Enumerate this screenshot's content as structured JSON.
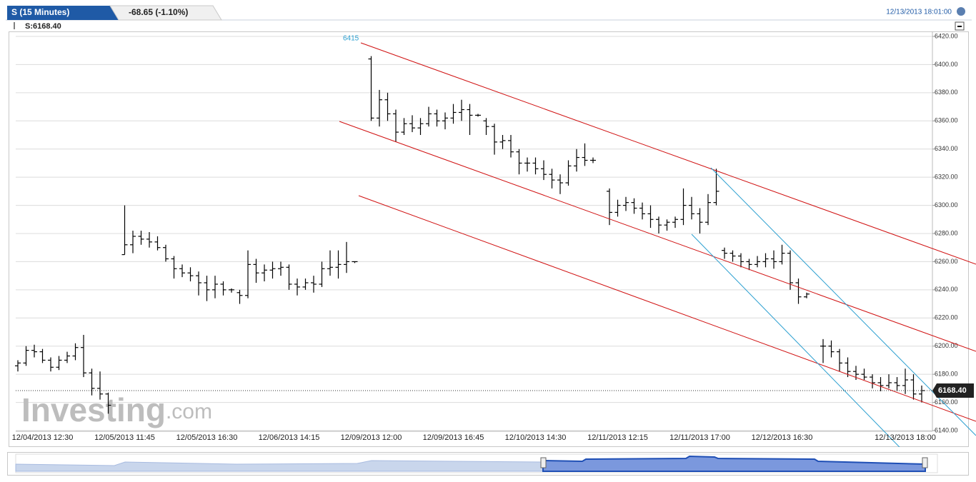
{
  "chart_data": {
    "type": "ohlc",
    "title": "S (15 Minutes)",
    "change": "-68.65 (-1.10%)",
    "timestamp": "12/13/2013 18:01:00",
    "legend_text": "S:6168.40",
    "annotation": "6415",
    "watermark": "Investing",
    "watermark_suffix": ".com",
    "last_price": {
      "value": 6168.4,
      "label": "6168.40"
    },
    "grid": true,
    "series": [
      {
        "name": "S",
        "color": "#000000",
        "open": [
          6186,
          6188,
          6197,
          6196,
          6190,
          6185,
          6190,
          6193,
          6199,
          6181,
          6170,
          6166,
          null,
          6265,
          6272,
          6278,
          6276,
          6274,
          6270,
          6262,
          6255,
          6252,
          6250,
          6245,
          6240,
          6244,
          6240,
          6238,
          6236,
          6258,
          6252,
          6254,
          6255,
          6256,
          6244,
          6242,
          6245,
          6244,
          6255,
          6256,
          6258,
          6260,
          null,
          6404,
          6362,
          6375,
          6365,
          6352,
          6358,
          6355,
          6358,
          6365,
          6360,
          6362,
          6366,
          6368,
          6364,
          6360,
          6356,
          6345,
          6346,
          6338,
          6330,
          6330,
          6326,
          6322,
          6318,
          6316,
          6328,
          6334,
          6332,
          null,
          6310,
          6295,
          6300,
          6302,
          6298,
          6294,
          6290,
          6286,
          6288,
          6290,
          6300,
          6294,
          6288,
          6302,
          6268,
          6266,
          6264,
          6260,
          6258,
          6260,
          6262,
          6260,
          6266,
          6245,
          6235,
          null,
          6200,
          6200,
          6196,
          6188,
          6182,
          6180,
          6178,
          6174,
          6172,
          6174,
          6172,
          6176,
          6166
        ],
        "high": [
          6190,
          6200,
          6201,
          6198,
          6192,
          6193,
          6196,
          6202,
          6208,
          6184,
          6182,
          6167,
          null,
          6300,
          6282,
          6282,
          6281,
          6278,
          6272,
          6264,
          6258,
          6256,
          6253,
          6250,
          6250,
          6246,
          6241,
          6240,
          6268,
          6262,
          6258,
          6260,
          6260,
          6258,
          6248,
          6248,
          6250,
          6260,
          6268,
          6268,
          6274,
          6260,
          null,
          6406,
          6382,
          6380,
          6368,
          6362,
          6364,
          6362,
          6370,
          6368,
          6366,
          6372,
          6375,
          6372,
          6365,
          6362,
          6358,
          6350,
          6350,
          6340,
          6334,
          6334,
          6332,
          6326,
          6322,
          6332,
          6340,
          6344,
          6334,
          null,
          6312,
          6304,
          6306,
          6305,
          6302,
          6300,
          6292,
          6290,
          6292,
          6312,
          6306,
          6298,
          6308,
          6326,
          6270,
          6268,
          6266,
          6262,
          6264,
          6266,
          6268,
          6272,
          6268,
          6248,
          6238,
          null,
          6205,
          6204,
          6198,
          6192,
          6186,
          6184,
          6180,
          6178,
          6180,
          6178,
          6184,
          6180,
          6172
        ],
        "low": [
          6182,
          6186,
          6192,
          6188,
          6182,
          6183,
          6188,
          6190,
          6178,
          6165,
          6162,
          6152,
          null,
          6265,
          6266,
          6272,
          6270,
          6268,
          6260,
          6248,
          6249,
          6246,
          6236,
          6232,
          6234,
          6236,
          6238,
          6230,
          6234,
          6245,
          6246,
          6248,
          6250,
          6240,
          6236,
          6240,
          6238,
          6242,
          6250,
          6248,
          6252,
          6259,
          null,
          6360,
          6356,
          6360,
          6345,
          6350,
          6352,
          6350,
          6356,
          6356,
          6354,
          6358,
          6360,
          6350,
          6363,
          6350,
          6336,
          6340,
          6334,
          6322,
          6324,
          6322,
          6318,
          6312,
          6308,
          6314,
          6324,
          6328,
          6330,
          null,
          6286,
          6292,
          6296,
          6294,
          6290,
          6284,
          6280,
          6282,
          6284,
          6286,
          6290,
          6280,
          6286,
          6300,
          6262,
          6260,
          6256,
          6254,
          6256,
          6256,
          6255,
          6258,
          6240,
          6230,
          6234,
          null,
          6188,
          6192,
          6182,
          6178,
          6176,
          6176,
          6170,
          6168,
          6170,
          6168,
          6166,
          6162,
          6160
        ],
        "close": [
          6188,
          6197,
          6196,
          6190,
          6185,
          6190,
          6193,
          6199,
          6181,
          6170,
          6166,
          6158,
          null,
          6272,
          6278,
          6276,
          6274,
          6270,
          6262,
          6255,
          6252,
          6250,
          6245,
          6240,
          6244,
          6240,
          6240,
          6236,
          6258,
          6252,
          6254,
          6255,
          6256,
          6244,
          6242,
          6245,
          6244,
          6255,
          6256,
          6258,
          6260,
          6260,
          null,
          6362,
          6375,
          6365,
          6352,
          6358,
          6355,
          6358,
          6365,
          6360,
          6362,
          6366,
          6368,
          6364,
          6364,
          6356,
          6345,
          6346,
          6338,
          6330,
          6330,
          6326,
          6322,
          6318,
          6316,
          6328,
          6334,
          6332,
          6332,
          null,
          6295,
          6300,
          6302,
          6298,
          6294,
          6290,
          6286,
          6288,
          6290,
          6300,
          6294,
          6288,
          6302,
          6310,
          6266,
          6264,
          6260,
          6258,
          6260,
          6262,
          6260,
          6266,
          6245,
          6235,
          6237,
          null,
          6200,
          6196,
          6188,
          6182,
          6180,
          6178,
          6174,
          6172,
          6174,
          6172,
          6176,
          6166,
          6168.4
        ]
      }
    ],
    "categories": [
      null,
      null,
      null,
      "12/04/2013 12:30",
      null,
      null,
      null,
      null,
      null,
      null,
      null,
      null,
      null,
      "12/05/2013 11:45",
      null,
      null,
      null,
      null,
      null,
      null,
      null,
      null,
      null,
      "12/05/2013 16:30",
      null,
      null,
      null,
      null,
      null,
      null,
      null,
      null,
      null,
      "12/06/2013 14:15",
      null,
      null,
      null,
      null,
      null,
      null,
      null,
      null,
      null,
      "12/09/2013 12:00",
      null,
      null,
      null,
      null,
      null,
      null,
      null,
      null,
      null,
      "12/09/2013 16:45",
      null,
      null,
      null,
      null,
      null,
      null,
      null,
      null,
      null,
      "12/10/2013 14:30",
      null,
      null,
      null,
      null,
      null,
      null,
      null,
      null,
      null,
      "12/11/2013 12:15",
      null,
      null,
      null,
      null,
      null,
      null,
      null,
      null,
      null,
      "12/11/2013 17:00",
      null,
      null,
      null,
      null,
      null,
      null,
      null,
      null,
      null,
      "12/12/2013 16:30",
      null,
      null,
      null,
      null,
      null,
      null,
      null,
      null,
      null,
      null,
      null,
      null,
      null,
      null,
      "12/13/2013 18:00",
      null,
      null
    ],
    "ylim": [
      6140,
      6420
    ],
    "yticks": [
      {
        "value": 6140,
        "label": "6140.00"
      },
      {
        "value": 6160,
        "label": "6160.00"
      },
      {
        "value": 6180,
        "label": "6180.00"
      },
      {
        "value": 6200,
        "label": "6200.00"
      },
      {
        "value": 6220,
        "label": "6220.00"
      },
      {
        "value": 6240,
        "label": "6240.00"
      },
      {
        "value": 6260,
        "label": "6260.00"
      },
      {
        "value": 6280,
        "label": "6280.00"
      },
      {
        "value": 6300,
        "label": "6300.00"
      },
      {
        "value": 6320,
        "label": "6320.00"
      },
      {
        "value": 6340,
        "label": "6340.00"
      },
      {
        "value": 6360,
        "label": "6360.00"
      },
      {
        "value": 6380,
        "label": "6380.00"
      },
      {
        "value": 6400,
        "label": "6400.00"
      },
      {
        "value": 6420,
        "label": "6420.00"
      }
    ]
  }
}
